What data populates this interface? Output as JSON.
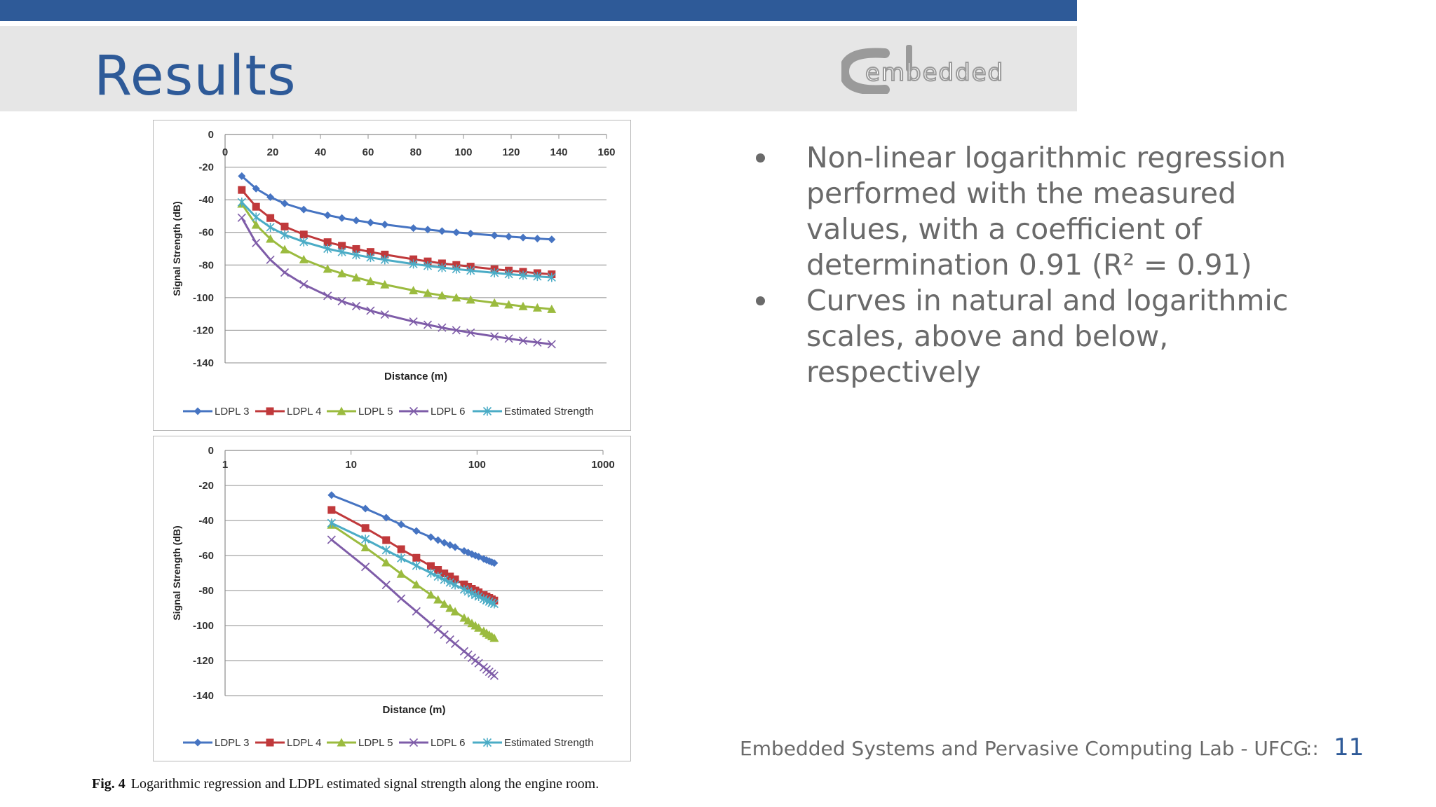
{
  "slide": {
    "title": "Results",
    "logo_text": "embedded",
    "bullets": [
      "Non-linear logarithmic regression performed with the measured values, with a coefficient of determination 0.91 (R² = 0.91)",
      "Curves in natural and logarithmic scales, above and below, respectively"
    ],
    "figure_caption_label": "Fig. 4",
    "figure_caption_text": "Logarithmic regression and LDPL estimated signal strength along the engine room.",
    "footer_text": "Embedded Systems and Pervasive Computing Lab - UFCG",
    "footer_separator": "::",
    "page_number": "11"
  },
  "colors": {
    "accent": "#2E5A98",
    "title_band": "#E6E6E6",
    "ldpl3": "#4674C2",
    "ldpl4": "#C0393B",
    "ldpl5": "#9BBB3F",
    "ldpl6": "#7E5CA8",
    "estimated": "#4BACC6"
  },
  "chart_data": [
    {
      "type": "line",
      "xscale": "linear",
      "xlabel": "Distance (m)",
      "ylabel": "Signal Strength (dB)",
      "xlim": [
        0,
        160
      ],
      "ylim": [
        -140,
        0
      ],
      "xticks": [
        "0",
        "20",
        "40",
        "60",
        "80",
        "100",
        "120",
        "140",
        "160"
      ],
      "yticks": [
        "0",
        "-20",
        "-40",
        "-60",
        "-80",
        "-100",
        "-120",
        "-140"
      ],
      "grid": "horizontal",
      "legend": "bottom",
      "x": [
        7,
        13,
        19,
        25,
        33,
        43,
        49,
        55,
        61,
        67,
        79,
        85,
        91,
        97,
        103,
        113,
        119,
        125,
        131,
        137
      ],
      "series": [
        {
          "name": "LDPL 3",
          "marker": "diamond",
          "values": [
            -25.5,
            -33.2,
            -38.4,
            -42.3,
            -46.0,
            -49.5,
            -51.2,
            -52.7,
            -54.0,
            -55.2,
            -57.4,
            -58.3,
            -59.2,
            -60.0,
            -60.7,
            -61.9,
            -62.6,
            -63.2,
            -63.8,
            -64.3
          ]
        },
        {
          "name": "LDPL 4",
          "marker": "square",
          "values": [
            -34.0,
            -44.3,
            -51.2,
            -56.4,
            -61.3,
            -66.0,
            -68.2,
            -70.2,
            -72.0,
            -73.6,
            -76.5,
            -77.8,
            -79.0,
            -80.0,
            -81.0,
            -82.6,
            -83.4,
            -84.2,
            -85.0,
            -85.7
          ]
        },
        {
          "name": "LDPL 5",
          "marker": "triangle",
          "values": [
            -42.5,
            -55.4,
            -64.0,
            -70.5,
            -76.6,
            -82.4,
            -85.2,
            -87.7,
            -90.0,
            -92.0,
            -95.6,
            -97.2,
            -98.7,
            -100.0,
            -101.3,
            -103.2,
            -104.3,
            -105.3,
            -106.2,
            -107.1
          ]
        },
        {
          "name": "LDPL 6",
          "marker": "x",
          "values": [
            -51.0,
            -66.5,
            -76.8,
            -84.6,
            -91.9,
            -98.9,
            -102.2,
            -105.2,
            -108.0,
            -110.4,
            -114.7,
            -116.6,
            -118.4,
            -120.0,
            -121.5,
            -123.8,
            -125.1,
            -126.4,
            -127.5,
            -128.6
          ]
        },
        {
          "name": "Estimated Strength",
          "marker": "asterisk",
          "values": [
            -41.5,
            -50.7,
            -56.9,
            -61.5,
            -65.8,
            -70.0,
            -72.0,
            -73.8,
            -75.4,
            -76.8,
            -79.4,
            -80.5,
            -81.6,
            -82.5,
            -83.4,
            -84.8,
            -85.6,
            -86.3,
            -87.0,
            -87.6
          ]
        }
      ]
    },
    {
      "type": "line",
      "xscale": "log",
      "xlabel": "Distance (m)",
      "ylabel": "Signal Strength (dB)",
      "xlim": [
        1,
        1000
      ],
      "ylim": [
        -140,
        0
      ],
      "xticks": [
        "1",
        "10",
        "100",
        "1000"
      ],
      "yticks": [
        "0",
        "-20",
        "-40",
        "-60",
        "-80",
        "-100",
        "-120",
        "-140"
      ],
      "grid": "horizontal",
      "legend": "bottom",
      "x": [
        7,
        13,
        19,
        25,
        33,
        43,
        49,
        55,
        61,
        67,
        79,
        85,
        91,
        97,
        103,
        113,
        119,
        125,
        131,
        137
      ],
      "series": [
        {
          "name": "LDPL 3",
          "marker": "diamond",
          "values": [
            -25.5,
            -33.2,
            -38.4,
            -42.3,
            -46.0,
            -49.5,
            -51.2,
            -52.7,
            -54.0,
            -55.2,
            -57.4,
            -58.3,
            -59.2,
            -60.0,
            -60.7,
            -61.9,
            -62.6,
            -63.2,
            -63.8,
            -64.3
          ]
        },
        {
          "name": "LDPL 4",
          "marker": "square",
          "values": [
            -34.0,
            -44.3,
            -51.2,
            -56.4,
            -61.3,
            -66.0,
            -68.2,
            -70.2,
            -72.0,
            -73.6,
            -76.5,
            -77.8,
            -79.0,
            -80.0,
            -81.0,
            -82.6,
            -83.4,
            -84.2,
            -85.0,
            -85.7
          ]
        },
        {
          "name": "LDPL 5",
          "marker": "triangle",
          "values": [
            -42.5,
            -55.4,
            -64.0,
            -70.5,
            -76.6,
            -82.4,
            -85.2,
            -87.7,
            -90.0,
            -92.0,
            -95.6,
            -97.2,
            -98.7,
            -100.0,
            -101.3,
            -103.2,
            -104.3,
            -105.3,
            -106.2,
            -107.1
          ]
        },
        {
          "name": "LDPL 6",
          "marker": "x",
          "values": [
            -51.0,
            -66.5,
            -76.8,
            -84.6,
            -91.9,
            -98.9,
            -102.2,
            -105.2,
            -108.0,
            -110.4,
            -114.7,
            -116.6,
            -118.4,
            -120.0,
            -121.5,
            -123.8,
            -125.1,
            -126.4,
            -127.5,
            -128.6
          ]
        },
        {
          "name": "Estimated Strength",
          "marker": "asterisk",
          "values": [
            -41.5,
            -50.7,
            -56.9,
            -61.5,
            -65.8,
            -70.0,
            -72.0,
            -73.8,
            -75.4,
            -76.8,
            -79.4,
            -80.5,
            -81.6,
            -82.5,
            -83.4,
            -84.8,
            -85.6,
            -86.3,
            -87.0,
            -87.6
          ]
        }
      ]
    }
  ]
}
